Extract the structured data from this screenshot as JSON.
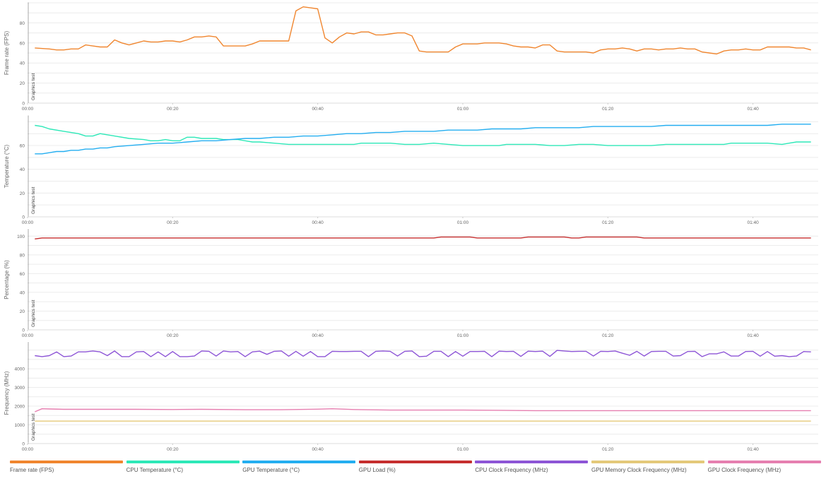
{
  "colors": {
    "fps": "#f0862f",
    "cpu_temp": "#2ee8b8",
    "gpu_temp": "#24aef0",
    "gpu_load": "#c62f2f",
    "cpu_clock": "#8d55d6",
    "gpu_mem_clock": "#e4c97a",
    "gpu_clock": "#e67fb0",
    "grid": "#ececec",
    "axis_text": "#666666"
  },
  "legend": [
    {
      "label": "Frame rate (FPS)",
      "color": "#f0862f"
    },
    {
      "label": "CPU Temperature (°C)",
      "color": "#2ee8b8"
    },
    {
      "label": "GPU Temperature (°C)",
      "color": "#24aef0"
    },
    {
      "label": "GPU Load (%)",
      "color": "#c62f2f"
    },
    {
      "label": "CPU Clock Frequency (MHz)",
      "color": "#8d55d6"
    },
    {
      "label": "GPU Memory Clock Frequency (MHz)",
      "color": "#e4c97a"
    },
    {
      "label": "GPU Clock Frequency (MHz)",
      "color": "#e67fb0"
    }
  ],
  "chart_data": [
    {
      "type": "line",
      "ylabel": "Frame rate (FPS)",
      "xlabel": "",
      "xlim": [
        0,
        109
      ],
      "ylim": [
        0,
        100
      ],
      "yticks": [
        0,
        20,
        40,
        60,
        80
      ],
      "xticks": [
        "00:00",
        "00:20",
        "00:40",
        "01:00",
        "01:20",
        "01:40"
      ],
      "grid": true,
      "marker": "Graphics test",
      "series": [
        {
          "name": "Frame rate (FPS)",
          "color": "#f0862f",
          "x": [
            1,
            3,
            4,
            5,
            6,
            7,
            8,
            9,
            10,
            11,
            12,
            13,
            14,
            15,
            16,
            17,
            18,
            19,
            20,
            21,
            22,
            23,
            24,
            25,
            26,
            27,
            28,
            29,
            30,
            31,
            32,
            33,
            34,
            35,
            36,
            37,
            38,
            39,
            40,
            41,
            42,
            43,
            44,
            45,
            46,
            47,
            48,
            49,
            50,
            51,
            52,
            53,
            54,
            55,
            56,
            57,
            58,
            59,
            60,
            61,
            62,
            63,
            64,
            65,
            66,
            67,
            68,
            69,
            70,
            71,
            72,
            73,
            74,
            75,
            76,
            77,
            78,
            79,
            80,
            81,
            82,
            83,
            84,
            85,
            86,
            87,
            88,
            89,
            90,
            91,
            92,
            93,
            94,
            95,
            96,
            97,
            98,
            99,
            100,
            101,
            102,
            103,
            104,
            105,
            106,
            107,
            108
          ],
          "y": [
            55,
            54,
            53,
            53,
            54,
            54,
            58,
            57,
            56,
            56,
            63,
            60,
            58,
            60,
            62,
            61,
            61,
            62,
            62,
            61,
            63,
            66,
            66,
            67,
            66,
            57,
            57,
            57,
            57,
            59,
            62,
            62,
            62,
            62,
            62,
            92,
            96,
            95,
            94,
            65,
            60,
            66,
            70,
            69,
            71,
            71,
            68,
            68,
            69,
            70,
            70,
            67,
            52,
            51,
            51,
            51,
            51,
            56,
            59,
            59,
            59,
            60,
            60,
            60,
            59,
            57,
            56,
            56,
            55,
            58,
            58,
            52,
            51,
            51,
            51,
            51,
            50,
            53,
            54,
            54,
            55,
            54,
            52,
            54,
            54,
            53,
            54,
            54,
            55,
            54,
            54,
            51,
            50,
            49,
            52,
            53,
            53,
            54,
            53,
            53,
            56,
            56,
            56,
            56,
            55,
            55,
            53
          ]
        }
      ]
    },
    {
      "type": "line",
      "ylabel": "Temperature (°C)",
      "xlabel": "",
      "xlim": [
        0,
        109
      ],
      "ylim": [
        0,
        85
      ],
      "yticks": [
        0,
        20,
        40,
        60
      ],
      "xticks": [
        "00:00",
        "00:20",
        "00:40",
        "01:00",
        "01:20",
        "01:40"
      ],
      "grid": true,
      "marker": "Graphics test",
      "series": [
        {
          "name": "CPU Temperature (°C)",
          "color": "#2ee8b8",
          "x": [
            1,
            2,
            3,
            5,
            7,
            8,
            9,
            10,
            12,
            14,
            16,
            17,
            18,
            19,
            20,
            21,
            22,
            23,
            24,
            25,
            26,
            27,
            28,
            29,
            30,
            31,
            32,
            34,
            36,
            38,
            40,
            42,
            44,
            45,
            46,
            48,
            50,
            52,
            54,
            56,
            58,
            60,
            62,
            64,
            65,
            66,
            68,
            70,
            72,
            74,
            76,
            78,
            80,
            82,
            84,
            86,
            88,
            90,
            92,
            94,
            96,
            97,
            98,
            100,
            102,
            104,
            105,
            106,
            107,
            108
          ],
          "y": [
            77,
            76,
            74,
            72,
            70,
            68,
            68,
            70,
            68,
            66,
            65,
            64,
            64,
            65,
            64,
            64,
            67,
            67,
            66,
            66,
            66,
            65,
            65,
            65,
            64,
            63,
            63,
            62,
            61,
            61,
            61,
            61,
            61,
            61,
            62,
            62,
            62,
            61,
            61,
            62,
            61,
            60,
            60,
            60,
            60,
            61,
            61,
            61,
            60,
            60,
            61,
            61,
            60,
            60,
            60,
            60,
            61,
            61,
            61,
            61,
            61,
            62,
            62,
            62,
            62,
            61,
            62,
            63,
            63,
            63
          ]
        },
        {
          "name": "GPU Temperature (°C)",
          "color": "#24aef0",
          "x": [
            1,
            2,
            3,
            4,
            5,
            6,
            7,
            8,
            9,
            10,
            11,
            12,
            14,
            16,
            18,
            20,
            22,
            24,
            26,
            28,
            30,
            32,
            34,
            36,
            38,
            40,
            42,
            44,
            46,
            48,
            50,
            52,
            54,
            56,
            58,
            60,
            62,
            64,
            66,
            68,
            70,
            72,
            74,
            76,
            78,
            80,
            82,
            84,
            86,
            88,
            90,
            92,
            94,
            96,
            98,
            100,
            102,
            104,
            106,
            108
          ],
          "y": [
            53,
            53,
            54,
            55,
            55,
            56,
            56,
            57,
            57,
            58,
            58,
            59,
            60,
            61,
            62,
            62,
            63,
            64,
            64,
            65,
            66,
            66,
            67,
            67,
            68,
            68,
            69,
            70,
            70,
            71,
            71,
            72,
            72,
            72,
            73,
            73,
            73,
            74,
            74,
            74,
            75,
            75,
            75,
            75,
            76,
            76,
            76,
            76,
            76,
            77,
            77,
            77,
            77,
            77,
            77,
            77,
            77,
            78,
            78,
            78
          ]
        }
      ]
    },
    {
      "type": "line",
      "ylabel": "Percentage (%)",
      "xlabel": "",
      "xlim": [
        0,
        109
      ],
      "ylim": [
        0,
        107
      ],
      "yticks": [
        0,
        20,
        40,
        60,
        80,
        100
      ],
      "xticks": [
        "00:00",
        "00:20",
        "00:40",
        "01:00",
        "01:20",
        "01:40"
      ],
      "grid": true,
      "marker": "Graphics test",
      "series": [
        {
          "name": "GPU Load (%)",
          "color": "#c62f2f",
          "x": [
            1,
            2,
            10,
            20,
            30,
            40,
            50,
            55,
            56,
            57,
            58,
            59,
            60,
            61,
            62,
            63,
            64,
            65,
            66,
            67,
            68,
            69,
            70,
            71,
            72,
            73,
            74,
            75,
            76,
            77,
            78,
            79,
            80,
            81,
            82,
            83,
            84,
            85,
            86,
            87,
            88,
            89,
            90,
            100,
            108
          ],
          "y": [
            97,
            98,
            98,
            98,
            98,
            98,
            98,
            98,
            98,
            99,
            99,
            99,
            99,
            99,
            98,
            98,
            98,
            98,
            98,
            98,
            98,
            99,
            99,
            99,
            99,
            99,
            99,
            98,
            98,
            99,
            99,
            99,
            99,
            99,
            99,
            99,
            99,
            98,
            98,
            98,
            98,
            98,
            98,
            98,
            98
          ]
        }
      ]
    },
    {
      "type": "line",
      "ylabel": "Frequency (MHz)",
      "xlabel": "",
      "xlim": [
        0,
        109
      ],
      "ylim": [
        0,
        5400
      ],
      "yticks": [
        0,
        1000,
        2000,
        3000,
        4000
      ],
      "xticks": [
        "00:00",
        "00:20",
        "00:40",
        "01:00",
        "01:20",
        "01:40"
      ],
      "grid": true,
      "marker": "Graphics test",
      "series": [
        {
          "name": "CPU Clock Frequency (MHz)",
          "color": "#8d55d6",
          "x": [
            1,
            2,
            3,
            4,
            5,
            6,
            7,
            8,
            9,
            10,
            11,
            12,
            13,
            14,
            15,
            16,
            17,
            18,
            19,
            20,
            21,
            22,
            23,
            24,
            25,
            26,
            27,
            28,
            29,
            30,
            31,
            32,
            33,
            34,
            35,
            36,
            37,
            38,
            39,
            40,
            41,
            42,
            43,
            44,
            45,
            46,
            47,
            48,
            49,
            50,
            51,
            52,
            53,
            54,
            55,
            56,
            57,
            58,
            59,
            60,
            61,
            62,
            63,
            64,
            65,
            66,
            67,
            68,
            69,
            70,
            71,
            72,
            73,
            74,
            75,
            76,
            77,
            78,
            79,
            80,
            81,
            82,
            83,
            84,
            85,
            86,
            87,
            88,
            89,
            90,
            91,
            92,
            93,
            94,
            95,
            96,
            97,
            98,
            99,
            100,
            101,
            102,
            103,
            104,
            105,
            106,
            107,
            108
          ],
          "y": [
            4700,
            4650,
            4700,
            4900,
            4650,
            4680,
            4900,
            4900,
            4950,
            4900,
            4700,
            4950,
            4650,
            4650,
            4900,
            4920,
            4650,
            4900,
            4650,
            4920,
            4650,
            4650,
            4680,
            4950,
            4930,
            4680,
            4950,
            4900,
            4920,
            4650,
            4900,
            4940,
            4770,
            4930,
            4950,
            4670,
            4930,
            4670,
            4920,
            4650,
            4650,
            4930,
            4920,
            4920,
            4930,
            4930,
            4650,
            4930,
            4950,
            4930,
            4680,
            4930,
            4950,
            4650,
            4670,
            4930,
            4930,
            4650,
            4920,
            4670,
            4920,
            4920,
            4930,
            4650,
            4940,
            4920,
            4930,
            4660,
            4940,
            4920,
            4940,
            4660,
            4980,
            4950,
            4920,
            4930,
            4930,
            4680,
            4930,
            4920,
            4950,
            4830,
            4720,
            4930,
            4680,
            4920,
            4930,
            4930,
            4680,
            4700,
            4920,
            4930,
            4650,
            4800,
            4800,
            4900,
            4680,
            4680,
            4920,
            4930,
            4670,
            4920,
            4670,
            4700,
            4650,
            4680,
            4920,
            4900
          ]
        },
        {
          "name": "GPU Memory Clock Frequency (MHz)",
          "color": "#e4c97a",
          "x": [
            1,
            108
          ],
          "y": [
            1200,
            1200
          ]
        },
        {
          "name": "GPU Clock Frequency (MHz)",
          "color": "#e67fb0",
          "x": [
            1,
            2,
            3,
            5,
            10,
            15,
            20,
            24,
            30,
            35,
            40,
            42,
            45,
            50,
            55,
            60,
            65,
            70,
            75,
            80,
            85,
            90,
            95,
            100,
            104,
            108
          ],
          "y": [
            1700,
            1860,
            1850,
            1830,
            1830,
            1830,
            1820,
            1830,
            1810,
            1810,
            1840,
            1860,
            1820,
            1790,
            1790,
            1790,
            1780,
            1760,
            1760,
            1760,
            1760,
            1760,
            1760,
            1760,
            1760,
            1760
          ]
        }
      ]
    }
  ]
}
